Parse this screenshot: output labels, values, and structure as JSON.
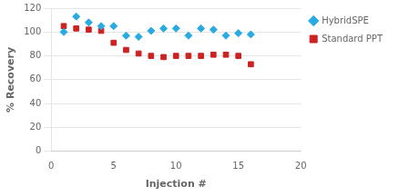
{
  "chart_data": {
    "type": "scatter",
    "xlabel": "Injection #",
    "ylabel": "% Recovery",
    "series": [
      {
        "name": "HybridSPE",
        "color": "#29ABE2",
        "marker": "diamond",
        "x": [
          1,
          2,
          3,
          4,
          5,
          6,
          7,
          8,
          9,
          10,
          11,
          12,
          13,
          14,
          15,
          16
        ],
        "values": [
          100,
          113,
          108,
          105,
          105,
          97,
          96,
          101,
          103,
          103,
          97,
          103,
          102,
          97,
          99,
          98
        ]
      },
      {
        "name": "Standard PPT",
        "color": "#CC2222",
        "marker": "square",
        "x": [
          1,
          2,
          3,
          4,
          5,
          6,
          7,
          8,
          9,
          10,
          11,
          12,
          13,
          14,
          15,
          16
        ],
        "values": [
          105,
          103,
          102,
          101,
          91,
          85,
          82,
          80,
          79,
          80,
          80,
          80,
          81,
          81,
          80,
          73
        ]
      }
    ],
    "xlim": [
      0,
      20
    ],
    "ylim": [
      0,
      120
    ],
    "xticks": [
      0,
      5,
      10,
      15,
      20
    ],
    "yticks": [
      0,
      20,
      40,
      60,
      80,
      100,
      120
    ],
    "grid": "y",
    "legend": "right"
  }
}
